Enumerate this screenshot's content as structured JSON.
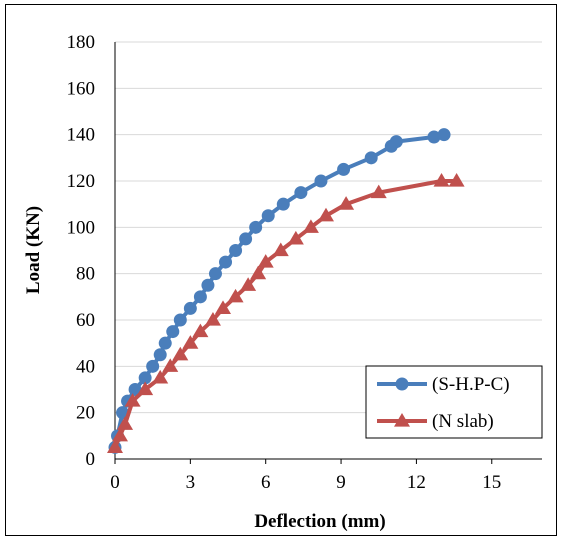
{
  "chart_data": {
    "type": "line",
    "xlabel": "Deflection (mm)",
    "ylabel": "Load (KN)",
    "xlim": [
      0,
      17
    ],
    "ylim": [
      0,
      180
    ],
    "xticks": [
      0,
      3,
      6,
      9,
      12,
      15
    ],
    "yticks": [
      0,
      20,
      40,
      60,
      80,
      100,
      120,
      140,
      160,
      180
    ],
    "grid": "horizontal",
    "legend": "bottom-right",
    "series": [
      {
        "name": "(S-H.P-C)",
        "color": "#4a7ebb",
        "marker": "circle",
        "x": [
          0.0,
          0.1,
          0.3,
          0.5,
          0.8,
          1.2,
          1.5,
          1.8,
          2.0,
          2.3,
          2.6,
          3.0,
          3.4,
          3.7,
          4.0,
          4.4,
          4.8,
          5.2,
          5.6,
          6.1,
          6.7,
          7.4,
          8.2,
          9.1,
          10.2,
          11.0,
          11.2,
          12.7,
          13.1
        ],
        "y": [
          5,
          10,
          20,
          25,
          30,
          35,
          40,
          45,
          50,
          55,
          60,
          65,
          70,
          75,
          80,
          85,
          90,
          95,
          100,
          105,
          110,
          115,
          120,
          125,
          130,
          135,
          137,
          139,
          140
        ]
      },
      {
        "name": "(N slab)",
        "color": "#c0504d",
        "marker": "triangle",
        "x": [
          0.0,
          0.2,
          0.4,
          0.7,
          1.2,
          1.8,
          2.2,
          2.6,
          3.0,
          3.4,
          3.9,
          4.3,
          4.8,
          5.3,
          5.7,
          6.0,
          6.6,
          7.2,
          7.8,
          8.4,
          9.2,
          10.5,
          13.0,
          13.6
        ],
        "y": [
          5,
          10,
          15,
          25,
          30,
          35,
          40,
          45,
          50,
          55,
          60,
          65,
          70,
          75,
          80,
          85,
          90,
          95,
          100,
          105,
          110,
          115,
          120,
          120
        ]
      }
    ]
  }
}
